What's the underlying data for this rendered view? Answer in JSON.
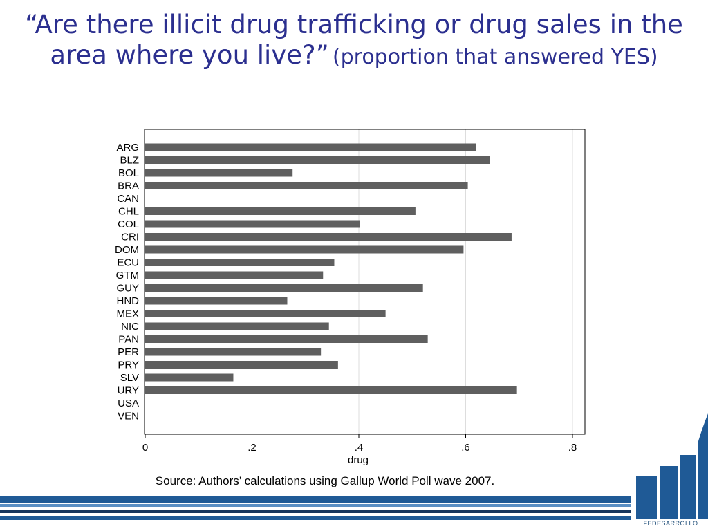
{
  "title": {
    "main": "“Are there illicit drug trafficking or drug sales in the area where you live?”",
    "subtitle": "(proportion that answered YES)"
  },
  "source_note": "Source: Authors’ calculations using Gallup World Poll wave 2007.",
  "logo_text": "FEDESARROLLO",
  "colors": {
    "title": "#2b2f8f",
    "bar": "#5f5f5f",
    "grid": "#dddddd",
    "stripe_blue": "#1f5a96",
    "stripe_dark": "#17365d"
  },
  "chart_data": {
    "type": "bar",
    "orientation": "horizontal",
    "categories": [
      "ARG",
      "BLZ",
      "BOL",
      "BRA",
      "CAN",
      "CHL",
      "COL",
      "CRI",
      "DOM",
      "ECU",
      "GTM",
      "GUY",
      "HND",
      "MEX",
      "NIC",
      "PAN",
      "PER",
      "PRY",
      "SLV",
      "URY",
      "USA",
      "VEN"
    ],
    "values": [
      0.62,
      0.645,
      0.276,
      0.604,
      null,
      0.506,
      0.402,
      0.686,
      0.596,
      0.354,
      0.333,
      0.52,
      0.266,
      0.45,
      0.344,
      0.529,
      0.329,
      0.361,
      0.165,
      0.696,
      null,
      null
    ],
    "xlabel": "drug",
    "xlim": [
      0,
      0.825
    ],
    "xticks": [
      0,
      0.2,
      0.4,
      0.6,
      0.8
    ],
    "xtick_labels": [
      "0",
      ".2",
      ".4",
      ".6",
      ".8"
    ],
    "grid": true
  }
}
